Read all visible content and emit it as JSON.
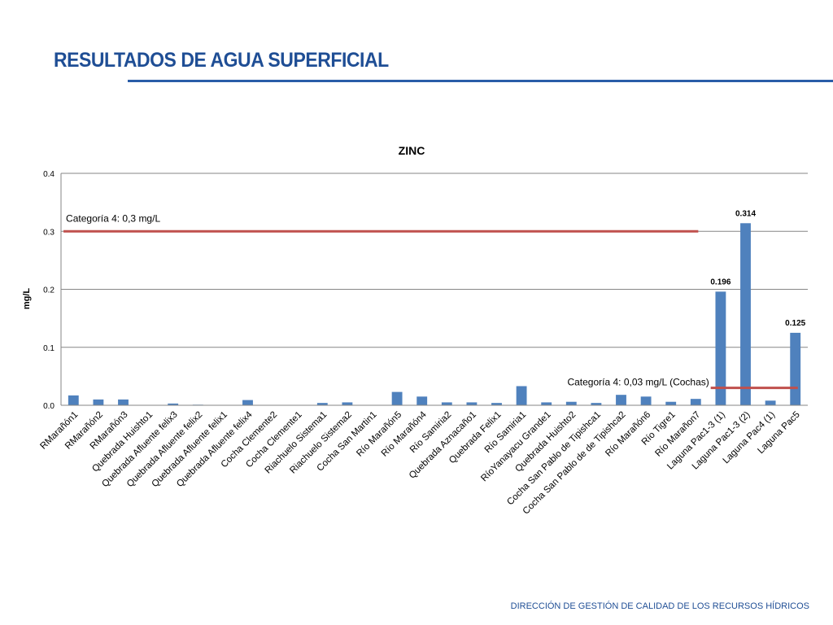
{
  "page": {
    "title": "RESULTADOS DE AGUA SUPERFICIAL",
    "footer": "DIRECCIÓN DE GESTIÓN DE CALIDAD DE LOS RECURSOS HÍDRICOS"
  },
  "colors": {
    "bar": "#4f81bd",
    "reference_line": "#c0504d",
    "title": "#1f4e95"
  },
  "chart_data": {
    "type": "bar",
    "title": "ZINC",
    "ylabel": "mg/L",
    "xlabel": "",
    "ylim": [
      0,
      0.4
    ],
    "yticks": [
      "0.0",
      "0.1",
      "0.2",
      "0.3",
      "0.4"
    ],
    "grid": true,
    "categories": [
      "RMarañón1",
      "RMarañón2",
      "RMarañón3",
      "Quebrada Huishto1",
      "Quebrada Afluente felix3",
      "Quebrada Afluente felix2",
      "Quebrada Afluente felix1",
      "Quebrada Afluente felix4",
      "Cocha Clemente2",
      "Cocha Clemente1",
      "Riachuelo Sistema1",
      "Riachuelo Sistema2",
      "Cocha San Martin1",
      "Río Marañón5",
      "Río Marañón4",
      "Río Samiria2",
      "Quebrada Aznacaño1",
      "Quebrada Felix1",
      "Río Samiria1",
      "RíoYanayacu Grande1",
      "Quebrada Huishto2",
      "Cocha San Pablo de Tipishca1",
      "Cocha San Pablo de de Tipishca2",
      "Río Marañón6",
      "Río Tigre1",
      "Río Marañon7",
      "Laguna Pac1-3 (1)",
      "Laguna Pac1-3 (2)",
      "Laguna Pac4 (1)",
      "Laguna Pac5"
    ],
    "values": [
      0.017,
      0.01,
      0.01,
      0.0,
      0.003,
      0.001,
      0.0,
      0.009,
      0.0,
      0.0,
      0.004,
      0.005,
      0.0,
      0.023,
      0.015,
      0.005,
      0.005,
      0.004,
      0.033,
      0.005,
      0.006,
      0.004,
      0.018,
      0.015,
      0.006,
      0.011,
      0.196,
      0.314,
      0.008,
      0.125
    ],
    "data_labels": [
      {
        "index": 26,
        "text": "0.196"
      },
      {
        "index": 27,
        "text": "0.314"
      },
      {
        "index": 29,
        "text": "0.125"
      }
    ],
    "reference_lines": [
      {
        "label": "Categoría 4: 0,3 mg/L",
        "value": 0.3,
        "from_index": 0,
        "to_index": 25
      },
      {
        "label": "Categoría 4: 0,03 mg/L (Cochas)",
        "value": 0.03,
        "from_index": 26,
        "to_index": 29
      }
    ]
  }
}
